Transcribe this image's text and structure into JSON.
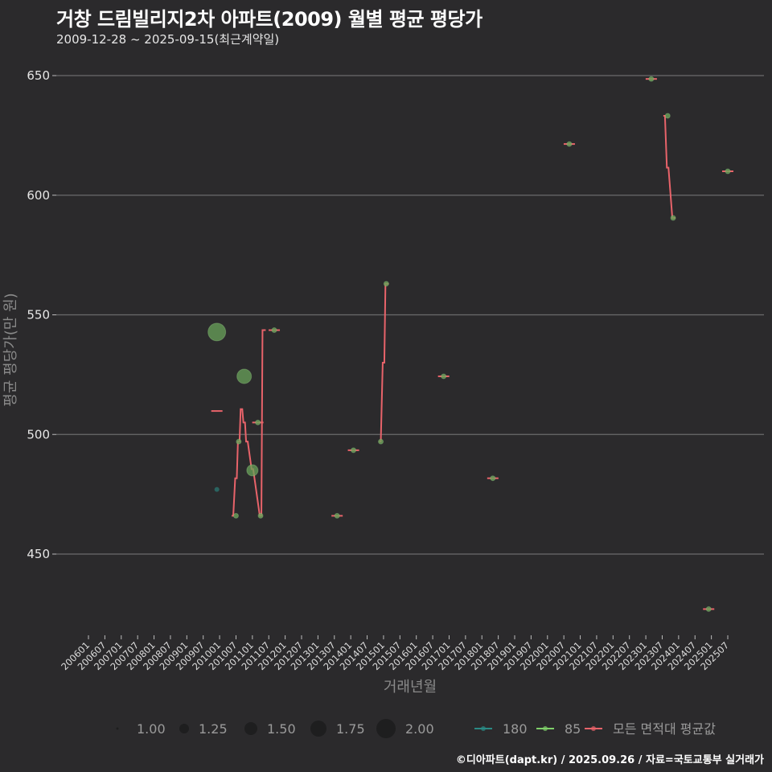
{
  "header": {
    "title": "거창 드림빌리지2차 아파트(2009) 월별 평균 평당가",
    "subtitle": "2009-12-28 ~ 2025-09-15(최근계약일)"
  },
  "caption": "©디아파트(dapt.kr) / 2025.09.26 / 자료=국토교통부 실거래가",
  "colors": {
    "background": "#2b2a2c",
    "grid": "#6b6b6b",
    "series_180": "#2a8a84",
    "series_85": "#7fd06a",
    "series_all": "#e8636a",
    "bubble_fill": "#6aa35a"
  },
  "chart_data": {
    "type": "scatter",
    "title": "거창 드림빌리지2차 아파트(2009) 월별 평균 평당가",
    "subtitle": "2009-12-28 ~ 2025-09-15(최근계약일)",
    "xlabel": "거래년월",
    "ylabel": "평균 평당가(만 원)",
    "ylim": [
      420,
      655
    ],
    "yticks": [
      450,
      500,
      550,
      600,
      650
    ],
    "xticks": [
      "200601",
      "200607",
      "200701",
      "200707",
      "200801",
      "200807",
      "200901",
      "200907",
      "201001",
      "201007",
      "201101",
      "201107",
      "201201",
      "201207",
      "201301",
      "201307",
      "201401",
      "201407",
      "201501",
      "201507",
      "201601",
      "201607",
      "201701",
      "201707",
      "201801",
      "201807",
      "201901",
      "201907",
      "202001",
      "202007",
      "202101",
      "202107",
      "202201",
      "202207",
      "202301",
      "202307",
      "202401",
      "202407",
      "202501",
      "202507"
    ],
    "grid": true,
    "legend": {
      "size_title": "",
      "sizes": [
        "1.00",
        "1.25",
        "1.50",
        "1.75",
        "2.00"
      ],
      "series": [
        "180",
        "85",
        "모든 면적대 평균값"
      ]
    },
    "series": [
      {
        "name": "180",
        "points": [
          {
            "ym": "2009-12",
            "value": 477,
            "count": 1
          }
        ]
      },
      {
        "name": "85",
        "points": [
          {
            "ym": "2009-12",
            "value": 542.8,
            "count": 2
          },
          {
            "ym": "2010-07",
            "value": 466,
            "count": 1
          },
          {
            "ym": "2010-08",
            "value": 497,
            "count": 1
          },
          {
            "ym": "2010-10",
            "value": 524.3,
            "count": 1.75
          },
          {
            "ym": "2011-01",
            "value": 485,
            "count": 1.5
          },
          {
            "ym": "2011-03",
            "value": 505,
            "count": 1
          },
          {
            "ym": "2011-04",
            "value": 466,
            "count": 1
          },
          {
            "ym": "2011-09",
            "value": 543.6,
            "count": 1
          },
          {
            "ym": "2013-08",
            "value": 466,
            "count": 1
          },
          {
            "ym": "2014-02",
            "value": 493.4,
            "count": 1
          },
          {
            "ym": "2014-12",
            "value": 497,
            "count": 1
          },
          {
            "ym": "2015-02",
            "value": 563,
            "count": 1
          },
          {
            "ym": "2016-11",
            "value": 524.3,
            "count": 1
          },
          {
            "ym": "2018-05",
            "value": 481.7,
            "count": 1
          },
          {
            "ym": "2020-09",
            "value": 621.4,
            "count": 1
          },
          {
            "ym": "2023-03",
            "value": 648.6,
            "count": 1
          },
          {
            "ym": "2023-09",
            "value": 633.2,
            "count": 1
          },
          {
            "ym": "2023-11",
            "value": 590.5,
            "count": 1
          },
          {
            "ym": "2024-12",
            "value": 427,
            "count": 1
          },
          {
            "ym": "2025-07",
            "value": 610,
            "count": 1
          }
        ]
      },
      {
        "name": "모든 면적대 평균값",
        "points": [
          {
            "ym": "2009-12",
            "value": 509.8
          },
          {
            "ym": "2010-06",
            "value": 466
          },
          {
            "ym": "2010-07",
            "value": 481.7
          },
          {
            "ym": "2010-08",
            "value": 497
          },
          {
            "ym": "2010-09",
            "value": 510.6
          },
          {
            "ym": "2010-10",
            "value": 505
          },
          {
            "ym": "2010-11",
            "value": 497
          },
          {
            "ym": "2011-01",
            "value": 485.5
          },
          {
            "ym": "2011-04",
            "value": 466
          },
          {
            "ym": "2011-05",
            "value": 543.6
          },
          {
            "ym": "2014-12",
            "value": 497
          },
          {
            "ym": "2015-01",
            "value": 530
          },
          {
            "ym": "2015-02",
            "value": 563
          },
          {
            "ym": "2023-08",
            "value": 633.2
          },
          {
            "ym": "2023-09",
            "value": 611.5
          },
          {
            "ym": "2023-11",
            "value": 590.5
          }
        ]
      }
    ]
  }
}
